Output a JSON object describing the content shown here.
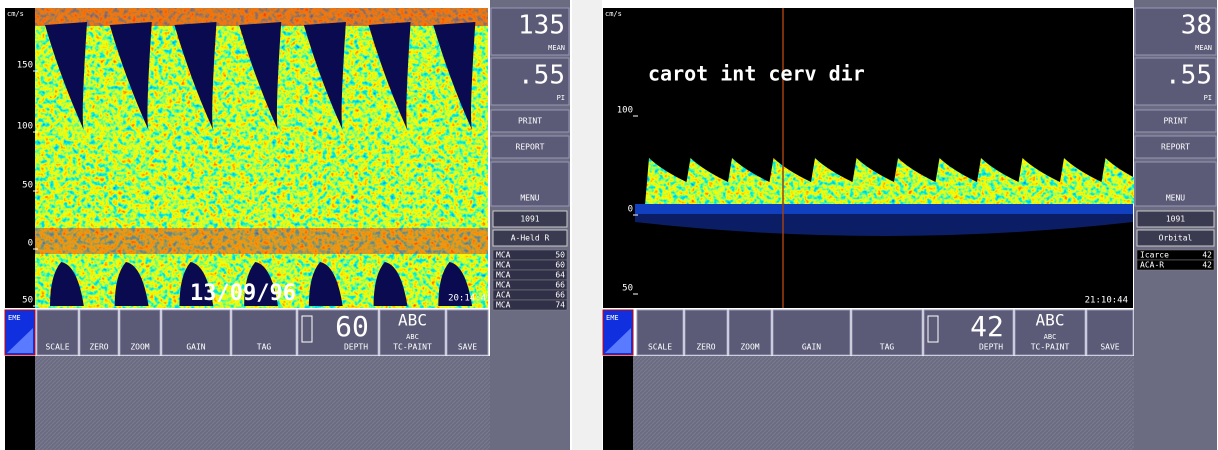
{
  "panels": [
    {
      "axis_unit": "cm/s",
      "y_labels": [
        "150",
        "100",
        "50",
        "0",
        "50"
      ],
      "overlay_text": "13/09/96",
      "clock": "20:14:4",
      "mean": {
        "value": "135",
        "label": "MEAN"
      },
      "pi": {
        "value": ".55",
        "label": "PI"
      },
      "print": "PRINT",
      "report": "REPORT",
      "menu": "MENU",
      "code": "1091",
      "probe": "A-Held R",
      "vessels": [
        {
          "name": "MCA",
          "value": "50"
        },
        {
          "name": "MCA",
          "value": "60"
        },
        {
          "name": "MCA",
          "value": "64"
        },
        {
          "name": "MCA",
          "value": "66"
        },
        {
          "name": "ACA",
          "value": "66"
        },
        {
          "name": "MCA",
          "value": "74"
        }
      ],
      "buttons": {
        "eme": "EME",
        "scale": "SCALE",
        "zero": "ZERO",
        "zoom": "ZOOM",
        "gain": "GAIN",
        "tag": "TAG",
        "depth_value": "60",
        "depth": "DEPTH",
        "abc_icon": "ABC",
        "abc": "ABC",
        "tc_paint": "TC-PAINT",
        "save": "SAVE"
      }
    },
    {
      "axis_unit": "cm/s",
      "y_labels": [
        "100",
        "0",
        "50"
      ],
      "overlay_text": "carot int cerv dir",
      "clock": "21:10:44",
      "mean": {
        "value": "38",
        "label": "MEAN"
      },
      "pi": {
        "value": ".55",
        "label": "PI"
      },
      "print": "PRINT",
      "report": "REPORT",
      "menu": "MENU",
      "code": "1091",
      "probe": "Orbital",
      "vessels": [
        {
          "name": "Icarce",
          "value": "42"
        },
        {
          "name": "ACA-R",
          "value": "42"
        }
      ],
      "buttons": {
        "eme": "EME",
        "scale": "SCALE",
        "zero": "ZERO",
        "zoom": "ZOOM",
        "gain": "GAIN",
        "tag": "TAG",
        "depth_value": "42",
        "depth": "DEPTH",
        "abc_icon": "ABC",
        "abc": "ABC",
        "tc_paint": "TC-PAINT",
        "save": "SAVE"
      }
    }
  ]
}
